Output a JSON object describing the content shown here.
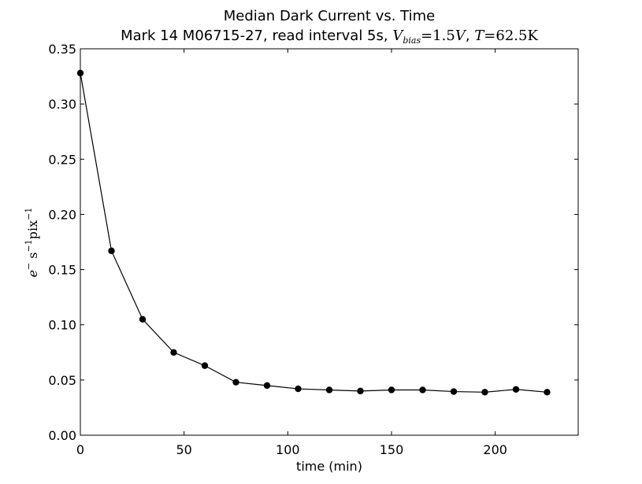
{
  "chart_data": {
    "type": "line",
    "title": "Median Dark Current vs. Time",
    "subtitle_plain": "Mark 14 M06715-27, read interval 5s, ",
    "subtitle_math": {
      "v_symbol": "V",
      "v_subscript": "bias",
      "v_value": "=1.5",
      "v_unit": "V",
      "sep": ", ",
      "t_symbol": "T",
      "t_value": "=62.5",
      "t_unit": "K"
    },
    "xlabel": "time (min)",
    "ylabel": {
      "e": "e",
      "e_sup": "−",
      "s": " s",
      "s_sup": "−1",
      "pix": "pix",
      "pix_sup": "−1"
    },
    "xlim": [
      0,
      240
    ],
    "ylim": [
      0,
      0.35
    ],
    "x_ticks": [
      0,
      50,
      100,
      150,
      200
    ],
    "y_ticks": [
      0.0,
      0.05,
      0.1,
      0.15,
      0.2,
      0.25,
      0.3,
      0.35
    ],
    "x_tick_labels": [
      "0",
      "50",
      "100",
      "150",
      "200"
    ],
    "y_tick_labels": [
      "0.00",
      "0.05",
      "0.10",
      "0.15",
      "0.20",
      "0.25",
      "0.30",
      "0.35"
    ],
    "x": [
      0,
      15,
      30,
      45,
      60,
      75,
      90,
      105,
      120,
      135,
      150,
      165,
      180,
      195,
      210,
      225
    ],
    "y": [
      0.328,
      0.167,
      0.105,
      0.075,
      0.063,
      0.048,
      0.045,
      0.042,
      0.041,
      0.04,
      0.041,
      0.041,
      0.0395,
      0.039,
      0.0415,
      0.039
    ],
    "grid": false,
    "line_color": "#000000",
    "marker_color": "#000000"
  }
}
